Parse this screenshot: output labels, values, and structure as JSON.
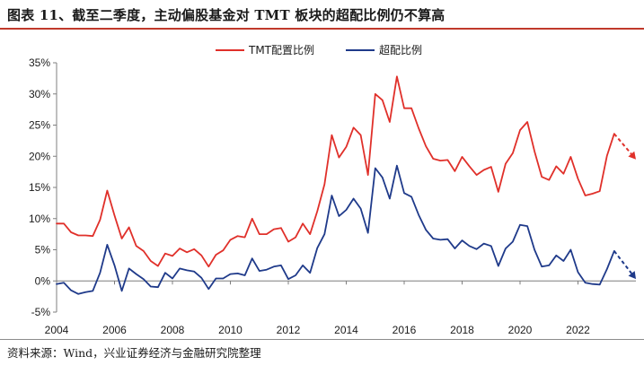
{
  "title": "图表 11、截至二季度，主动偏股基金对 TMT 板块的超配比例仍不算高",
  "source": "资料来源：Wind，兴业证券经济与金融研究院整理",
  "colors": {
    "accent": "#c0392b",
    "series_red": "#e0302a",
    "series_blue": "#1f3a8a"
  },
  "chart_data": {
    "type": "line",
    "x_ticks": [
      "2004",
      "2006",
      "2008",
      "2010",
      "2012",
      "2014",
      "2016",
      "2018",
      "2020",
      "2022"
    ],
    "y_ticks": [
      "35%",
      "30%",
      "25%",
      "20%",
      "15%",
      "10%",
      "5%",
      "0%",
      "-5%"
    ],
    "xlim": [
      2004,
      2024
    ],
    "ylim": [
      -5,
      35
    ],
    "grid": false,
    "legend_position": "top-center",
    "series": [
      {
        "name": "TMT配置比例",
        "color": "#e0302a",
        "x": [
          2004.0,
          2004.25,
          2004.5,
          2004.75,
          2005.0,
          2005.25,
          2005.5,
          2005.75,
          2006.0,
          2006.25,
          2006.5,
          2006.75,
          2007.0,
          2007.25,
          2007.5,
          2007.75,
          2008.0,
          2008.25,
          2008.5,
          2008.75,
          2009.0,
          2009.25,
          2009.5,
          2009.75,
          2010.0,
          2010.25,
          2010.5,
          2010.75,
          2011.0,
          2011.25,
          2011.5,
          2011.75,
          2012.0,
          2012.25,
          2012.5,
          2012.75,
          2013.0,
          2013.25,
          2013.5,
          2013.75,
          2014.0,
          2014.25,
          2014.5,
          2014.75,
          2015.0,
          2015.25,
          2015.5,
          2015.75,
          2016.0,
          2016.25,
          2016.5,
          2016.75,
          2017.0,
          2017.25,
          2017.5,
          2017.75,
          2018.0,
          2018.25,
          2018.5,
          2018.75,
          2019.0,
          2019.25,
          2019.5,
          2019.75,
          2020.0,
          2020.25,
          2020.5,
          2020.75,
          2021.0,
          2021.25,
          2021.5,
          2021.75,
          2022.0,
          2022.25,
          2022.5,
          2022.75,
          2023.0,
          2023.25
        ],
        "values": [
          9.2,
          9.2,
          7.8,
          7.3,
          7.3,
          7.2,
          9.8,
          14.5,
          10.5,
          6.8,
          8.6,
          5.6,
          4.8,
          3.2,
          2.4,
          4.4,
          4.0,
          5.2,
          4.6,
          5.1,
          4.1,
          2.3,
          4.2,
          4.9,
          6.6,
          7.2,
          7.0,
          10.0,
          7.5,
          7.5,
          8.3,
          8.5,
          6.3,
          7.0,
          9.2,
          7.5,
          11.2,
          15.5,
          23.4,
          19.8,
          21.5,
          24.6,
          23.4,
          17.0,
          30.0,
          29.0,
          25.5,
          32.8,
          27.7,
          27.7,
          24.5,
          21.6,
          19.6,
          19.3,
          19.4,
          17.6,
          19.9,
          18.4,
          17.0,
          17.8,
          18.3,
          14.3,
          18.8,
          20.5,
          24.2,
          25.5,
          20.8,
          16.7,
          16.2,
          18.4,
          17.2,
          19.9,
          16.4,
          13.7,
          14.0,
          14.4,
          20.1,
          23.6
        ]
      },
      {
        "name": "超配比例",
        "color": "#1f3a8a",
        "x": [
          2004.0,
          2004.25,
          2004.5,
          2004.75,
          2005.0,
          2005.25,
          2005.5,
          2005.75,
          2006.0,
          2006.25,
          2006.5,
          2006.75,
          2007.0,
          2007.25,
          2007.5,
          2007.75,
          2008.0,
          2008.25,
          2008.5,
          2008.75,
          2009.0,
          2009.25,
          2009.5,
          2009.75,
          2010.0,
          2010.25,
          2010.5,
          2010.75,
          2011.0,
          2011.25,
          2011.5,
          2011.75,
          2012.0,
          2012.25,
          2012.5,
          2012.75,
          2013.0,
          2013.25,
          2013.5,
          2013.75,
          2014.0,
          2014.25,
          2014.5,
          2014.75,
          2015.0,
          2015.25,
          2015.5,
          2015.75,
          2016.0,
          2016.25,
          2016.5,
          2016.75,
          2017.0,
          2017.25,
          2017.5,
          2017.75,
          2018.0,
          2018.25,
          2018.5,
          2018.75,
          2019.0,
          2019.25,
          2019.5,
          2019.75,
          2020.0,
          2020.25,
          2020.5,
          2020.75,
          2021.0,
          2021.25,
          2021.5,
          2021.75,
          2022.0,
          2022.25,
          2022.5,
          2022.75,
          2023.0,
          2023.25
        ],
        "values": [
          -0.5,
          -0.3,
          -1.5,
          -2.1,
          -1.8,
          -1.6,
          1.3,
          5.8,
          2.5,
          -1.6,
          2.0,
          1.1,
          0.3,
          -0.9,
          -1.0,
          1.3,
          0.4,
          2.0,
          1.7,
          1.5,
          0.5,
          -1.3,
          0.4,
          0.4,
          1.1,
          1.2,
          0.9,
          3.6,
          1.6,
          1.8,
          2.3,
          2.5,
          0.3,
          0.9,
          2.5,
          1.3,
          5.3,
          7.5,
          13.7,
          10.4,
          11.4,
          13.2,
          11.6,
          7.7,
          18.1,
          16.6,
          13.2,
          18.5,
          14.1,
          13.5,
          10.6,
          8.2,
          6.8,
          6.6,
          6.7,
          5.2,
          6.5,
          5.6,
          5.1,
          6.0,
          5.6,
          2.4,
          5.2,
          6.3,
          9.0,
          8.8,
          5.0,
          2.3,
          2.5,
          4.1,
          3.2,
          5.0,
          1.4,
          -0.3,
          -0.5,
          -0.6,
          1.9,
          4.8
        ]
      }
    ],
    "projection_arrows": [
      {
        "series": "TMT配置比例",
        "from": [
          2023.25,
          23.6
        ],
        "to": [
          2024.0,
          19.5
        ]
      },
      {
        "series": "超配比例",
        "from": [
          2023.25,
          4.8
        ],
        "to": [
          2024.0,
          0.3
        ]
      }
    ]
  }
}
